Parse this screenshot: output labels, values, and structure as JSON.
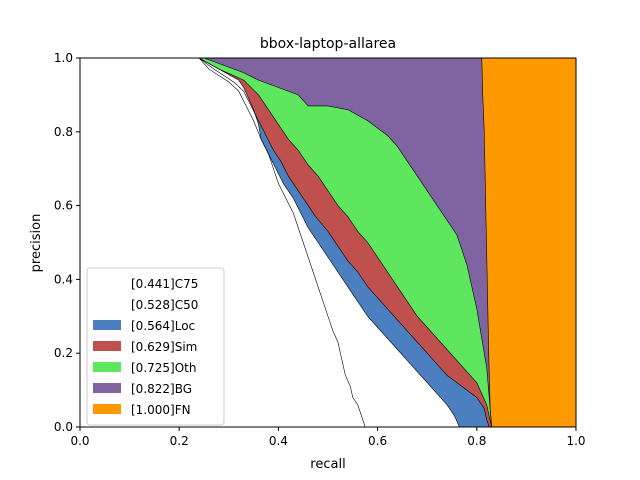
{
  "chart_data": {
    "type": "area",
    "title": "bbox-laptop-allarea",
    "xlabel": "recall",
    "ylabel": "precision",
    "xlim": [
      0,
      1
    ],
    "ylim": [
      0,
      1
    ],
    "xticks": [
      "0.0",
      "0.2",
      "0.4",
      "0.6",
      "0.8",
      "1.0"
    ],
    "yticks": [
      "0.0",
      "0.2",
      "0.4",
      "0.6",
      "0.8",
      "1.0"
    ],
    "legend_position": "lower-left",
    "grid": false,
    "series": [
      {
        "name": "[0.441]C75",
        "color": "#ffffff",
        "points": [
          [
            0,
            1
          ],
          [
            0.24,
            1
          ],
          [
            0.26,
            0.985
          ],
          [
            0.3,
            0.955
          ],
          [
            0.32,
            0.94
          ],
          [
            0.33,
            0.92
          ],
          [
            0.34,
            0.89
          ],
          [
            0.35,
            0.86
          ],
          [
            0.36,
            0.82
          ],
          [
            0.365,
            0.78
          ],
          [
            0.38,
            0.74
          ],
          [
            0.39,
            0.7
          ],
          [
            0.4,
            0.66
          ],
          [
            0.415,
            0.62
          ],
          [
            0.43,
            0.58
          ],
          [
            0.44,
            0.54
          ],
          [
            0.45,
            0.5
          ],
          [
            0.46,
            0.46
          ],
          [
            0.47,
            0.42
          ],
          [
            0.48,
            0.38
          ],
          [
            0.49,
            0.34
          ],
          [
            0.5,
            0.3
          ],
          [
            0.51,
            0.26
          ],
          [
            0.52,
            0.23
          ],
          [
            0.525,
            0.2
          ],
          [
            0.53,
            0.17
          ],
          [
            0.535,
            0.14
          ],
          [
            0.545,
            0.11
          ],
          [
            0.55,
            0.08
          ],
          [
            0.56,
            0.06
          ],
          [
            0.565,
            0.04
          ],
          [
            0.57,
            0.02
          ],
          [
            0.575,
            0
          ]
        ]
      },
      {
        "name": "[0.528]C50",
        "color": "#ffffff",
        "points": [
          [
            0,
            1
          ],
          [
            0.24,
            1
          ],
          [
            0.26,
            0.97
          ],
          [
            0.3,
            0.935
          ],
          [
            0.32,
            0.91
          ],
          [
            0.335,
            0.87
          ],
          [
            0.35,
            0.83
          ],
          [
            0.365,
            0.78
          ],
          [
            0.38,
            0.74
          ],
          [
            0.395,
            0.7
          ],
          [
            0.41,
            0.66
          ],
          [
            0.43,
            0.62
          ],
          [
            0.445,
            0.58
          ],
          [
            0.46,
            0.54
          ],
          [
            0.48,
            0.5
          ],
          [
            0.5,
            0.46
          ],
          [
            0.52,
            0.42
          ],
          [
            0.54,
            0.38
          ],
          [
            0.56,
            0.34
          ],
          [
            0.58,
            0.3
          ],
          [
            0.6,
            0.27
          ],
          [
            0.62,
            0.24
          ],
          [
            0.64,
            0.21
          ],
          [
            0.66,
            0.18
          ],
          [
            0.68,
            0.15
          ],
          [
            0.7,
            0.12
          ],
          [
            0.72,
            0.09
          ],
          [
            0.74,
            0.06
          ],
          [
            0.755,
            0.03
          ],
          [
            0.765,
            0
          ]
        ]
      },
      {
        "name": "[0.564]Loc",
        "color": "#4c7fc0",
        "points": [
          [
            0,
            1
          ],
          [
            0.24,
            1
          ],
          [
            0.27,
            0.97
          ],
          [
            0.31,
            0.935
          ],
          [
            0.33,
            0.91
          ],
          [
            0.345,
            0.87
          ],
          [
            0.36,
            0.83
          ],
          [
            0.375,
            0.79
          ],
          [
            0.39,
            0.75
          ],
          [
            0.405,
            0.72
          ],
          [
            0.42,
            0.68
          ],
          [
            0.44,
            0.64
          ],
          [
            0.46,
            0.6
          ],
          [
            0.475,
            0.57
          ],
          [
            0.5,
            0.53
          ],
          [
            0.52,
            0.49
          ],
          [
            0.54,
            0.45
          ],
          [
            0.56,
            0.42
          ],
          [
            0.58,
            0.38
          ],
          [
            0.6,
            0.35
          ],
          [
            0.62,
            0.32
          ],
          [
            0.64,
            0.29
          ],
          [
            0.66,
            0.26
          ],
          [
            0.68,
            0.23
          ],
          [
            0.7,
            0.2
          ],
          [
            0.72,
            0.17
          ],
          [
            0.74,
            0.14
          ],
          [
            0.76,
            0.12
          ],
          [
            0.78,
            0.1
          ],
          [
            0.8,
            0.08
          ],
          [
            0.815,
            0.05
          ],
          [
            0.82,
            0.02
          ],
          [
            0.825,
            0
          ]
        ]
      },
      {
        "name": "[0.629]Sim",
        "color": "#c0504d",
        "points": [
          [
            0,
            1
          ],
          [
            0.24,
            1
          ],
          [
            0.28,
            0.97
          ],
          [
            0.33,
            0.94
          ],
          [
            0.36,
            0.9
          ],
          [
            0.38,
            0.86
          ],
          [
            0.4,
            0.82
          ],
          [
            0.42,
            0.78
          ],
          [
            0.44,
            0.75
          ],
          [
            0.46,
            0.71
          ],
          [
            0.48,
            0.68
          ],
          [
            0.5,
            0.64
          ],
          [
            0.52,
            0.6
          ],
          [
            0.54,
            0.57
          ],
          [
            0.56,
            0.53
          ],
          [
            0.58,
            0.5
          ],
          [
            0.6,
            0.46
          ],
          [
            0.62,
            0.42
          ],
          [
            0.64,
            0.38
          ],
          [
            0.66,
            0.34
          ],
          [
            0.68,
            0.3
          ],
          [
            0.7,
            0.27
          ],
          [
            0.72,
            0.24
          ],
          [
            0.74,
            0.21
          ],
          [
            0.76,
            0.18
          ],
          [
            0.78,
            0.15
          ],
          [
            0.8,
            0.12
          ],
          [
            0.81,
            0.09
          ],
          [
            0.82,
            0.06
          ],
          [
            0.825,
            0.03
          ],
          [
            0.83,
            0
          ]
        ]
      },
      {
        "name": "[0.725]Oth",
        "color": "#5ee65e",
        "points": [
          [
            0,
            1
          ],
          [
            0.25,
            1
          ],
          [
            0.29,
            0.98
          ],
          [
            0.33,
            0.96
          ],
          [
            0.36,
            0.94
          ],
          [
            0.4,
            0.92
          ],
          [
            0.44,
            0.9
          ],
          [
            0.46,
            0.87
          ],
          [
            0.5,
            0.87
          ],
          [
            0.54,
            0.86
          ],
          [
            0.58,
            0.83
          ],
          [
            0.62,
            0.79
          ],
          [
            0.64,
            0.76
          ],
          [
            0.66,
            0.72
          ],
          [
            0.68,
            0.68
          ],
          [
            0.7,
            0.64
          ],
          [
            0.72,
            0.6
          ],
          [
            0.74,
            0.56
          ],
          [
            0.76,
            0.52
          ],
          [
            0.77,
            0.48
          ],
          [
            0.78,
            0.44
          ],
          [
            0.79,
            0.38
          ],
          [
            0.8,
            0.32
          ],
          [
            0.81,
            0.24
          ],
          [
            0.82,
            0.16
          ],
          [
            0.825,
            0.08
          ],
          [
            0.83,
            0
          ]
        ]
      },
      {
        "name": "[0.822]BG",
        "color": "#8064a2",
        "points": [
          [
            0,
            1
          ],
          [
            0.81,
            1
          ],
          [
            0.812,
            0.9
          ],
          [
            0.815,
            0.8
          ],
          [
            0.818,
            0.6
          ],
          [
            0.821,
            0.4
          ],
          [
            0.824,
            0.2
          ],
          [
            0.827,
            0.05
          ],
          [
            0.83,
            0
          ]
        ]
      },
      {
        "name": "[1.000]FN",
        "color": "#ff9900",
        "points": [
          [
            0,
            1
          ],
          [
            1,
            1
          ],
          [
            1,
            0
          ]
        ]
      }
    ]
  }
}
